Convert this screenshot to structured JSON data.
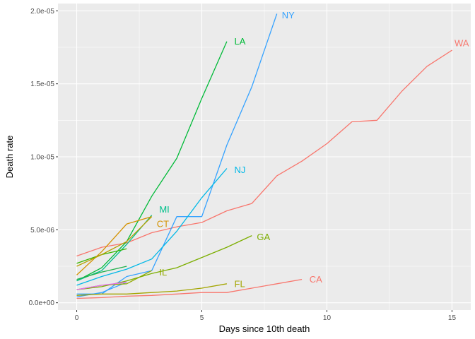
{
  "chart_data": {
    "type": "line",
    "xlabel": "Days since 10th death",
    "ylabel": "Death rate",
    "xlim": [
      -0.75,
      15.75
    ],
    "ylim": [
      -5e-07,
      2.05e-05
    ],
    "x_ticks": [
      0,
      5,
      10,
      15
    ],
    "x_tick_labels": [
      "0",
      "5",
      "10",
      "15"
    ],
    "y_ticks": [
      0,
      5e-06,
      1e-05,
      1.5e-05,
      2e-05
    ],
    "y_tick_labels": [
      "0.0e+00",
      "5.0e-06",
      "1.0e-05",
      "1.5e-05",
      "2.0e-05"
    ],
    "grid": true,
    "legend": "none",
    "series": [
      {
        "name": "WA",
        "label": "WA",
        "color": "#F8766D",
        "label_at": [
          15.1,
          1.78e-05
        ],
        "x": [
          0,
          1,
          2,
          3,
          4,
          5,
          6,
          7,
          8,
          9,
          10,
          11,
          12,
          13,
          14,
          15
        ],
        "y": [
          3.2e-06,
          3.8e-06,
          4.1e-06,
          4.8e-06,
          5.2e-06,
          5.5e-06,
          6.3e-06,
          6.8e-06,
          8.7e-06,
          9.7e-06,
          1.09e-05,
          1.24e-05,
          1.25e-05,
          1.45e-05,
          1.62e-05,
          1.73e-05
        ]
      },
      {
        "name": "CA",
        "label": "CA",
        "color": "#F8766D",
        "label_at": [
          9.3,
          1.6e-06
        ],
        "x": [
          0,
          1,
          2,
          3,
          4,
          5,
          6,
          7,
          8,
          9
        ],
        "y": [
          3e-07,
          3.5e-07,
          4.5e-07,
          5e-07,
          6e-07,
          7e-07,
          7e-07,
          1e-06,
          1.3e-06,
          1.6e-06
        ]
      },
      {
        "name": "NY",
        "label": "NY",
        "color": "#35A2FF",
        "label_at": [
          8.2,
          1.97e-05
        ],
        "x": [
          0,
          1,
          2,
          3,
          4,
          5,
          6,
          7,
          8
        ],
        "y": [
          6e-07,
          6e-07,
          1.8e-06,
          2.2e-06,
          5.9e-06,
          5.9e-06,
          1.08e-05,
          1.48e-05,
          1.98e-05
        ]
      },
      {
        "name": "NY-2",
        "label": "",
        "color": "#35A2FF",
        "x": [
          0,
          1,
          2
        ],
        "y": [
          4e-07,
          7e-07,
          1.4e-06
        ]
      },
      {
        "name": "NJ",
        "label": "NJ",
        "color": "#00B8E7",
        "label_at": [
          6.3,
          9.1e-06
        ],
        "x": [
          0,
          1,
          2,
          3,
          4,
          5,
          6
        ],
        "y": [
          1.2e-06,
          1.8e-06,
          2.3e-06,
          3e-06,
          4.9e-06,
          7.2e-06,
          9.2e-06
        ]
      },
      {
        "name": "LA",
        "label": "LA",
        "color": "#00BA38",
        "label_at": [
          6.3,
          1.79e-05
        ],
        "x": [
          0,
          1,
          2,
          3,
          4,
          5,
          6
        ],
        "y": [
          1.5e-06,
          2.4e-06,
          4.2e-06,
          7.3e-06,
          9.9e-06,
          1.4e-05,
          1.79e-05
        ]
      },
      {
        "name": "MI",
        "label": "MI",
        "color": "#00C08B",
        "label_at": [
          3.3,
          6.4e-06
        ],
        "x": [
          0,
          1,
          2,
          3
        ],
        "y": [
          1.5e-06,
          2.2e-06,
          4e-06,
          6e-06
        ]
      },
      {
        "name": "green-a",
        "label": "",
        "color": "#22B14C",
        "x": [
          0,
          1,
          2
        ],
        "y": [
          1.6e-06,
          2.1e-06,
          2.5e-06
        ]
      },
      {
        "name": "green-b",
        "label": "",
        "color": "#39B600",
        "x": [
          0,
          1,
          2
        ],
        "y": [
          2.7e-06,
          3.3e-06,
          3.7e-06
        ]
      },
      {
        "name": "CT",
        "label": "CT",
        "color": "#D39200",
        "label_at": [
          3.2,
          5.4e-06
        ],
        "x": [
          0,
          1,
          2,
          3
        ],
        "y": [
          1.9e-06,
          3.5e-06,
          5.4e-06,
          5.9e-06
        ]
      },
      {
        "name": "olive",
        "label": "",
        "color": "#B79F00",
        "x": [
          0,
          1,
          2,
          3
        ],
        "y": [
          2.5e-06,
          3.3e-06,
          4.2e-06,
          5.9e-06
        ]
      },
      {
        "name": "IL",
        "label": "IL",
        "color": "#93AA00",
        "label_at": [
          3.3,
          2.1e-06
        ],
        "x": [
          0,
          1,
          2,
          3
        ],
        "y": [
          9e-07,
          1.2e-06,
          1.3e-06,
          2.2e-06
        ]
      },
      {
        "name": "GA",
        "label": "GA",
        "color": "#7CAE00",
        "label_at": [
          7.2,
          4.5e-06
        ],
        "x": [
          0,
          1,
          2,
          3,
          4,
          5,
          6,
          7
        ],
        "y": [
          9e-07,
          1.1e-06,
          1.5e-06,
          2e-06,
          2.4e-06,
          3.1e-06,
          3.8e-06,
          4.6e-06
        ]
      },
      {
        "name": "FL",
        "label": "FL",
        "color": "#A3A500",
        "label_at": [
          6.3,
          1.3e-06
        ],
        "x": [
          0,
          1,
          2,
          3,
          4,
          5,
          6
        ],
        "y": [
          5e-07,
          6e-07,
          6e-07,
          7e-07,
          8e-07,
          1e-06,
          1.3e-06
        ]
      },
      {
        "name": "magenta",
        "label": "",
        "color": "#E76BF3",
        "x": [
          0,
          1,
          2
        ],
        "y": [
          9e-07,
          1.2e-06,
          1.4e-06
        ]
      }
    ]
  }
}
